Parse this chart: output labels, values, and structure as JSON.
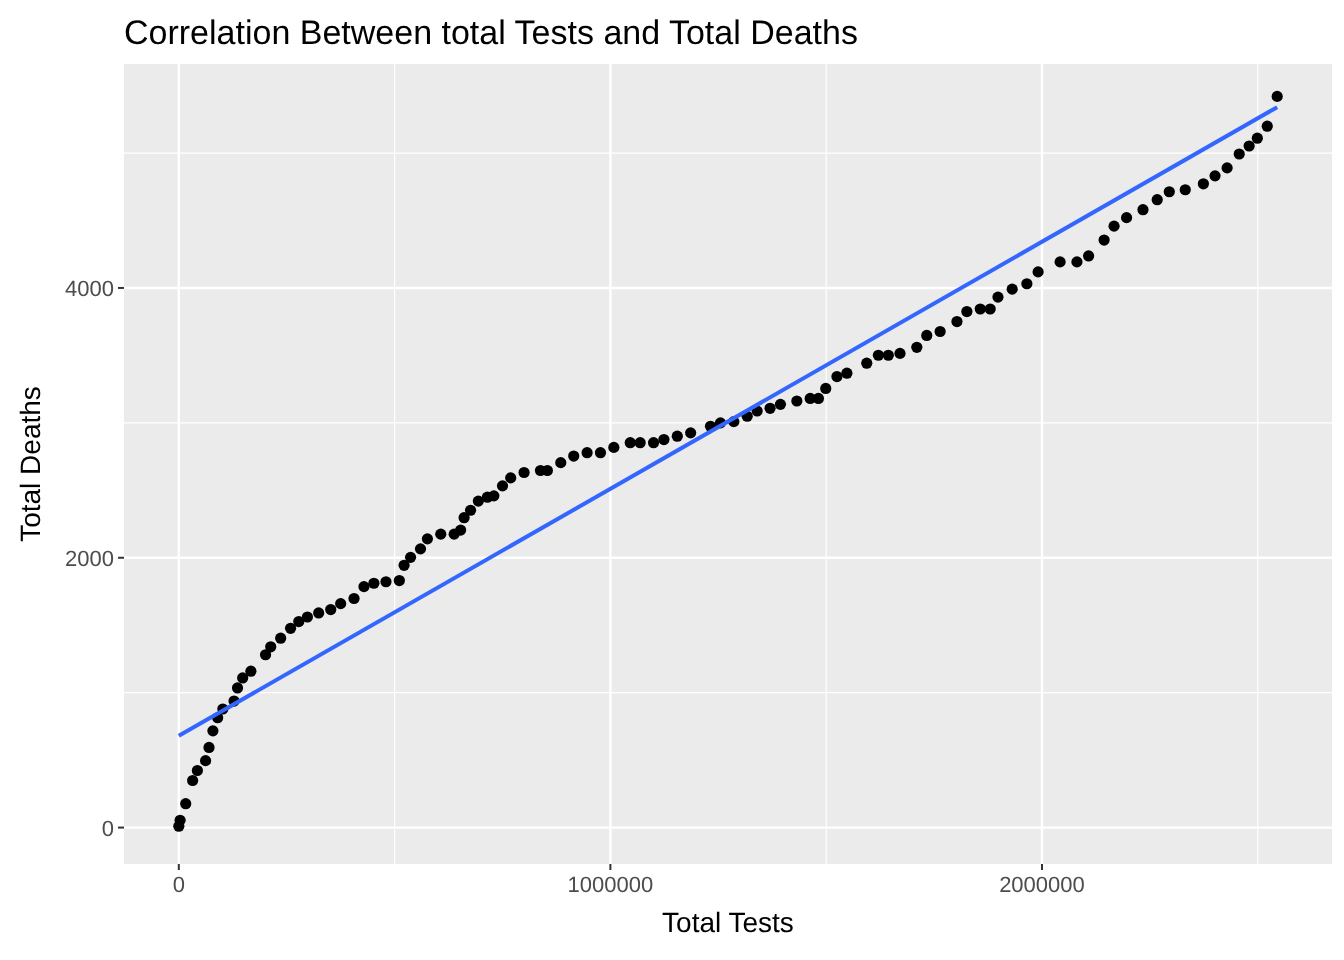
{
  "chart_data": {
    "type": "scatter",
    "title": "Correlation Between total Tests and Total Deaths",
    "xlabel": "Total Tests",
    "ylabel": "Total Deaths",
    "xlim": [
      -127000,
      2672000
    ],
    "ylim": [
      -270,
      5660
    ],
    "xticks": [
      0,
      {
        "value": 500000,
        "label": null
      },
      1000000,
      {
        "value": 1500000,
        "label": null
      },
      2000000,
      {
        "value": 2500000,
        "label": null
      }
    ],
    "yticks": [
      0,
      {
        "value": 1000,
        "label": null
      },
      2000,
      {
        "value": 3000,
        "label": null
      },
      4000,
      {
        "value": 5000,
        "label": null
      }
    ],
    "grid": true,
    "series": [
      {
        "marker": "circle",
        "color": "#000000",
        "x": [
          0,
          3000,
          16000,
          32000,
          43000,
          62000,
          70000,
          79000,
          90000,
          102000,
          128000,
          136000,
          148000,
          167000,
          201000,
          213000,
          236000,
          259000,
          278000,
          298000,
          324000,
          352000,
          375000,
          406000,
          429000,
          452000,
          480000,
          511000,
          522000,
          537000,
          560000,
          576000,
          607000,
          638000,
          653000,
          661000,
          676000,
          694000,
          715000,
          730000,
          750000,
          769000,
          800000,
          838000,
          854000,
          885000,
          915000,
          946000,
          977000,
          1008000,
          1046000,
          1069000,
          1100000,
          1124000,
          1155000,
          1186000,
          1232000,
          1255000,
          1286000,
          1317000,
          1340000,
          1370000,
          1394000,
          1432000,
          1463000,
          1482000,
          1499000,
          1525000,
          1548000,
          1594000,
          1621000,
          1644000,
          1671000,
          1710000,
          1733000,
          1764000,
          1803000,
          1826000,
          1857000,
          1880000,
          1898000,
          1931000,
          1965000,
          1991000,
          2042000,
          2081000,
          2108000,
          2144000,
          2167000,
          2196000,
          2234000,
          2267000,
          2295000,
          2332000,
          2374000,
          2401000,
          2429000,
          2457000,
          2480000,
          2499000,
          2522000,
          2545000
        ],
        "values": [
          10,
          54,
          177,
          349,
          423,
          496,
          594,
          717,
          814,
          879,
          938,
          1035,
          1109,
          1159,
          1281,
          1340,
          1404,
          1477,
          1527,
          1561,
          1591,
          1616,
          1660,
          1698,
          1786,
          1811,
          1822,
          1831,
          1944,
          2003,
          2066,
          2140,
          2175,
          2175,
          2205,
          2297,
          2352,
          2420,
          2449,
          2459,
          2533,
          2592,
          2632,
          2647,
          2647,
          2705,
          2754,
          2779,
          2779,
          2818,
          2853,
          2853,
          2853,
          2876,
          2901,
          2926,
          2975,
          3000,
          3009,
          3049,
          3088,
          3108,
          3137,
          3162,
          3181,
          3181,
          3255,
          3343,
          3368,
          3442,
          3501,
          3501,
          3515,
          3560,
          3648,
          3677,
          3751,
          3825,
          3844,
          3844,
          3932,
          3991,
          4031,
          4119,
          4193,
          4193,
          4237,
          4355,
          4458,
          4521,
          4580,
          4654,
          4713,
          4728,
          4772,
          4831,
          4890,
          4993,
          5052,
          5110,
          5199,
          5420
        ]
      },
      {
        "type": "line",
        "color": "#3366ff",
        "x": [
          0,
          2545000
        ],
        "values": [
          680,
          5340
        ]
      }
    ]
  }
}
